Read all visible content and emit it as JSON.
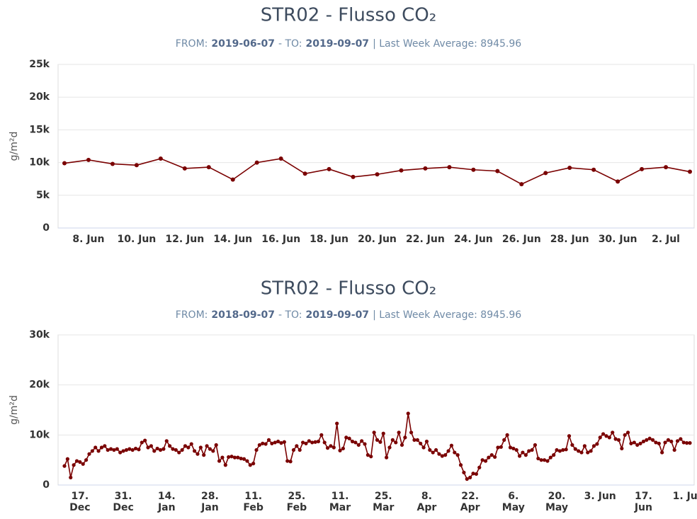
{
  "chart_data": [
    {
      "type": "line",
      "title": "STR02 - Flusso CO₂",
      "subtitle": {
        "from_label": "FROM:",
        "from": "2019-06-07",
        "to_label": "- TO:",
        "to": "2019-09-07",
        "average": "| Last Week Average: 8945.96"
      },
      "ylabel": "g/m²d",
      "categories": [
        null,
        "8. Jun",
        null,
        "10. Jun",
        null,
        "12. Jun",
        null,
        "14. Jun",
        null,
        "16. Jun",
        null,
        "18. Jun",
        null,
        "20. Jun",
        null,
        "22. Jun",
        null,
        "24. Jun",
        null,
        "26. Jun",
        null,
        "28. Jun",
        null,
        "30. Jun",
        null,
        "2. Jul",
        null
      ],
      "values": [
        9900,
        10400,
        9800,
        9600,
        10600,
        9100,
        9300,
        7400,
        10000,
        10600,
        8300,
        9000,
        7800,
        8200,
        8800,
        9100,
        9300,
        8900,
        8700,
        6700,
        8400,
        9200,
        8900,
        7100,
        9000,
        9300,
        8600
      ],
      "color": "#7a0000",
      "ylim": [
        0,
        25000
      ],
      "yticks": [
        0,
        {
          "value": 5000,
          "label": "5k"
        },
        {
          "value": 10000,
          "label": "10k"
        },
        {
          "value": 15000,
          "label": "15k"
        },
        {
          "value": 20000,
          "label": "20k"
        },
        {
          "value": 25000,
          "label": "25k"
        }
      ],
      "grid": true
    },
    {
      "type": "line",
      "title": "STR02 - Flusso CO₂",
      "subtitle": {
        "from_label": "FROM:",
        "from": "2018-09-07",
        "to_label": "- TO:",
        "to": "2019-09-07",
        "average": "| Last Week Average: 8945.96"
      },
      "ylabel": "g/m²d",
      "categories": [
        null,
        null,
        null,
        null,
        null,
        "17. Dec",
        null,
        null,
        null,
        null,
        null,
        null,
        null,
        null,
        null,
        null,
        null,
        null,
        null,
        "31. Dec",
        null,
        null,
        null,
        null,
        null,
        null,
        null,
        null,
        null,
        null,
        null,
        null,
        null,
        "14. Jan",
        null,
        null,
        null,
        null,
        null,
        null,
        null,
        null,
        null,
        null,
        null,
        null,
        null,
        "28. Jan",
        null,
        null,
        null,
        null,
        null,
        null,
        null,
        null,
        null,
        null,
        null,
        null,
        null,
        "11. Feb",
        null,
        null,
        null,
        null,
        null,
        null,
        null,
        null,
        null,
        null,
        null,
        null,
        null,
        "25. Feb",
        null,
        null,
        null,
        null,
        null,
        null,
        null,
        null,
        null,
        null,
        null,
        null,
        null,
        "11. Mar",
        null,
        null,
        null,
        null,
        null,
        null,
        null,
        null,
        null,
        null,
        null,
        null,
        null,
        "25. Mar",
        null,
        null,
        null,
        null,
        null,
        null,
        null,
        null,
        null,
        null,
        null,
        null,
        null,
        "8. Apr",
        null,
        null,
        null,
        null,
        null,
        null,
        null,
        null,
        null,
        null,
        null,
        null,
        null,
        "22. Apr",
        null,
        null,
        null,
        null,
        null,
        null,
        null,
        null,
        null,
        null,
        null,
        null,
        null,
        "6. May",
        null,
        null,
        null,
        null,
        null,
        null,
        null,
        null,
        null,
        null,
        null,
        null,
        null,
        "20. May",
        null,
        null,
        null,
        null,
        null,
        null,
        null,
        null,
        null,
        null,
        null,
        null,
        null,
        "3. Jun",
        null,
        null,
        null,
        null,
        null,
        null,
        null,
        null,
        null,
        null,
        null,
        null,
        null,
        "17. Jun",
        null,
        null,
        null,
        null,
        null,
        null,
        null,
        null,
        null,
        null,
        null,
        null,
        null,
        "1. Jul",
        null
      ],
      "values": [
        3800,
        5200,
        1500,
        4000,
        4800,
        4600,
        4200,
        5000,
        6200,
        6800,
        7500,
        6800,
        7500,
        7800,
        7000,
        7200,
        7000,
        7200,
        6500,
        6800,
        7000,
        7200,
        7000,
        7300,
        7100,
        8500,
        8900,
        7500,
        7800,
        6800,
        7300,
        7000,
        7200,
        8800,
        7800,
        7200,
        7000,
        6500,
        7000,
        7800,
        7500,
        8200,
        6800,
        6200,
        7500,
        6000,
        7800,
        7200,
        6800,
        8000,
        4800,
        5500,
        4000,
        5600,
        5700,
        5500,
        5500,
        5300,
        5200,
        4800,
        4000,
        4300,
        7000,
        8000,
        8300,
        8200,
        9000,
        8300,
        8500,
        8700,
        8400,
        8600,
        4800,
        4700,
        7000,
        7800,
        7000,
        8500,
        8300,
        8800,
        8500,
        8600,
        8700,
        10000,
        8500,
        7400,
        7800,
        7500,
        12300,
        6900,
        7300,
        9500,
        9300,
        8700,
        8500,
        8000,
        8800,
        8200,
        6000,
        5700,
        10500,
        9000,
        8600,
        10300,
        5500,
        7500,
        9000,
        8500,
        10500,
        8000,
        9500,
        14300,
        10500,
        9000,
        9000,
        8300,
        7500,
        8700,
        7000,
        6500,
        7000,
        6200,
        5800,
        6000,
        6800,
        7900,
        6500,
        6000,
        4000,
        2500,
        1200,
        1500,
        2300,
        2200,
        3500,
        5000,
        4800,
        5500,
        6000,
        5600,
        7500,
        7600,
        9000,
        10000,
        7500,
        7300,
        7000,
        5800,
        6500,
        6000,
        6800,
        7000,
        8000,
        5300,
        5000,
        5000,
        4800,
        5500,
        6000,
        7000,
        6800,
        7000,
        7100,
        9800,
        8000,
        7200,
        6800,
        6500,
        7800,
        6500,
        6800,
        7800,
        8200,
        9500,
        10200,
        9800,
        9500,
        10500,
        9200,
        9000,
        7300,
        10000,
        10500,
        8300,
        8500,
        8000,
        8300,
        8700,
        9000,
        9300,
        9000,
        8500,
        8300,
        6500,
        8500,
        9000,
        8700,
        7000,
        8800,
        9200,
        8500,
        8400,
        8400
      ],
      "color": "#7a0000",
      "ylim": [
        0,
        30000
      ],
      "yticks": [
        0,
        {
          "value": 10000,
          "label": "10k"
        },
        {
          "value": 20000,
          "label": "20k"
        },
        {
          "value": 30000,
          "label": "30k"
        }
      ],
      "grid": true
    }
  ]
}
